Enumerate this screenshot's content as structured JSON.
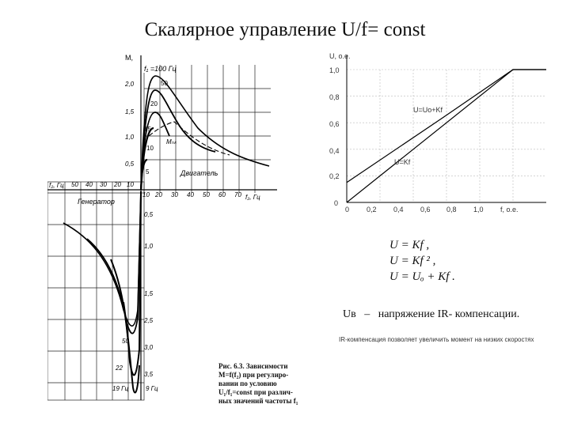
{
  "slide": {
    "title": "Скалярное управление U/f= const"
  },
  "left_figure": {
    "y_axis_label": "M,",
    "f1_label": "f₁ =100 Гц",
    "curve_labels": [
      "50",
      "20",
      "15",
      "10",
      "5"
    ],
    "m_label": "Mₕₖ",
    "motor_label": "Двигатель",
    "generator_label": "Генератор",
    "f2_left_label": "f₂, Гц",
    "f2_right_label": "f₂, Гц",
    "top_ticks": [
      "2,0",
      "1,5",
      "1,0",
      "0,5"
    ],
    "bottom_ticks": [
      "0,5",
      "1,0",
      "1,5",
      "2,5",
      "3,0",
      "3,5"
    ],
    "x_ticks_left": [
      "50",
      "40",
      "30",
      "20",
      "10"
    ],
    "x_ticks_right": [
      "10",
      "20",
      "30",
      "40",
      "50",
      "60",
      "70"
    ],
    "bottom_curve_labels": [
      "50",
      "22",
      "19 Гц",
      "9 Гц"
    ]
  },
  "caption": {
    "lines": [
      "Рис. 6.3. Зависимости",
      "M=f(f₂) при регулиро-",
      "вании по условию",
      "U₁/f₁=const при различ-",
      "ных значений частоты f₁"
    ]
  },
  "right_chart": {
    "y_label": "U, о.е.",
    "x_label": "f, о.е.",
    "line1_label": "U=Uo+Kf",
    "line2_label": "U=Kf",
    "y_ticks": [
      "1,0",
      "0,8",
      "0,6",
      "0,4",
      "0,2",
      "0"
    ],
    "x_ticks": [
      "0",
      "0,2",
      "0,4",
      "0,6",
      "0,8",
      "1,0"
    ]
  },
  "chart_data": {
    "type": "line",
    "xlabel": "f, о.е.",
    "ylabel": "U, о.е.",
    "xlim": [
      0,
      1.2
    ],
    "ylim": [
      0,
      1.0
    ],
    "series": [
      {
        "name": "U=Uo+Kf",
        "x": [
          0,
          0.58,
          1.0,
          1.2
        ],
        "y": [
          0.15,
          0.64,
          1.0,
          1.0
        ]
      },
      {
        "name": "U=Kf",
        "x": [
          0,
          1.0,
          1.2
        ],
        "y": [
          0,
          1.0,
          1.0
        ]
      }
    ]
  },
  "formulas": {
    "f1": "U = Kf ,",
    "f2": "U = Kf ² ,",
    "f3": "U = Uₒ + Kf ."
  },
  "ub": {
    "symbol": "Uв",
    "dash": "–",
    "text": "напряжение IR- компенсации."
  },
  "note": "IR-компенсация позволяет увеличить момент на низких скоростях"
}
